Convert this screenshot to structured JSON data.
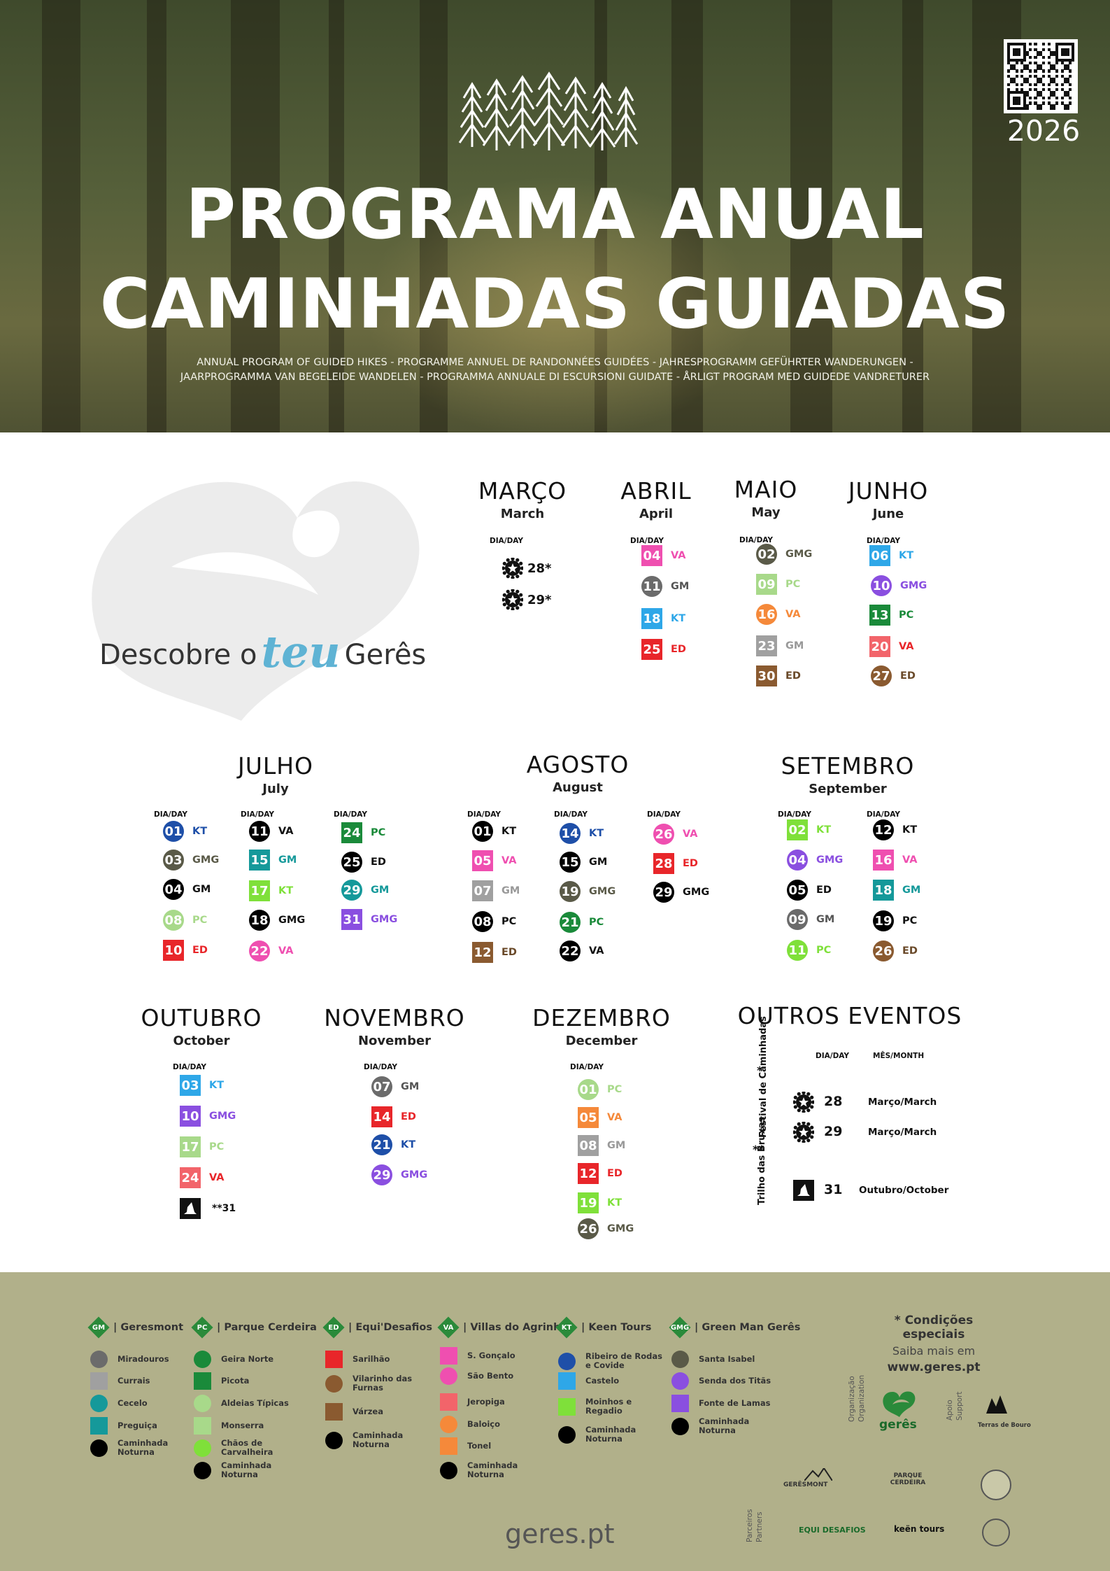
{
  "hero": {
    "year": "2026",
    "title_line1": "PROGRAMA ANUAL",
    "title_line2": "CAMINHADAS GUIADAS",
    "subtitle_line1": "ANNUAL PROGRAM OF GUIDED HIKES - PROGRAMME ANNUEL DE RANDONNÉES GUIDÉES - JAHRESPROGRAMM GEFÜHRTER WANDERUNGEN -",
    "subtitle_line2": "JAARPROGRAMMA VAN BEGELEIDE WANDELEN - PROGRAMMA ANNUALE DI ESCURSIONI GUIDATE - ÅRLIGT PROGRAM MED GUIDEDE VANDRETURER"
  },
  "slogan": {
    "pre": "Descobre o",
    "teu": "teu",
    "post": "Gerês"
  },
  "dia_label": "DIA/DAY",
  "colors": {
    "KT": "#2ea7e8",
    "VA": "#ef4fb0",
    "GM": "#666666",
    "ED": "#e8262a",
    "GMG": "#8a4fe0",
    "PC": "#1a8a3a",
    "pc_light": "#a8d98a",
    "gm_teal": "#15999a",
    "kt_navy": "#1e4fa8",
    "kt_lime": "#7fe03a",
    "gmg_olive": "#5a5a48",
    "ed_brown": "#8a5a30",
    "va_orange": "#f5893a",
    "va_salmon": "#f2646a",
    "gm_silver": "#a0a0a0",
    "footer_bg": "#b1b08a"
  },
  "months": {
    "marco": {
      "name": "MARÇO",
      "eng": "March",
      "events": [
        {
          "day": "28*",
          "icon": "star-badge-icon"
        },
        {
          "day": "29*",
          "icon": "star-badge-icon"
        }
      ]
    },
    "abril": {
      "name": "ABRIL",
      "eng": "April",
      "events": [
        {
          "day": "04",
          "code": "VA"
        },
        {
          "day": "11",
          "code": "GM"
        },
        {
          "day": "18",
          "code": "KT"
        },
        {
          "day": "25",
          "code": "ED"
        }
      ]
    },
    "maio": {
      "name": "MAIO",
      "eng": "May",
      "events": [
        {
          "day": "02",
          "code": "GMG"
        },
        {
          "day": "09",
          "code": "PC"
        },
        {
          "day": "16",
          "code": "VA"
        },
        {
          "day": "23",
          "code": "GM"
        },
        {
          "day": "30",
          "code": "ED"
        }
      ]
    },
    "junho": {
      "name": "JUNHO",
      "eng": "June",
      "events": [
        {
          "day": "06",
          "code": "KT"
        },
        {
          "day": "10",
          "code": "GMG"
        },
        {
          "day": "13",
          "code": "PC"
        },
        {
          "day": "20",
          "code": "VA"
        },
        {
          "day": "27",
          "code": "ED"
        }
      ]
    },
    "julho": {
      "name": "JULHO",
      "eng": "July",
      "events": [
        {
          "day": "01",
          "code": "KT"
        },
        {
          "day": "03",
          "code": "GMG"
        },
        {
          "day": "04",
          "code": "GM"
        },
        {
          "day": "08",
          "code": "PC"
        },
        {
          "day": "10",
          "code": "ED"
        },
        {
          "day": "11",
          "code": "VA"
        },
        {
          "day": "15",
          "code": "GM"
        },
        {
          "day": "17",
          "code": "KT"
        },
        {
          "day": "18",
          "code": "GMG"
        },
        {
          "day": "22",
          "code": "VA"
        },
        {
          "day": "24",
          "code": "PC"
        },
        {
          "day": "25",
          "code": "ED"
        },
        {
          "day": "29",
          "code": "GM"
        },
        {
          "day": "31",
          "code": "GMG"
        }
      ]
    },
    "agosto": {
      "name": "AGOSTO",
      "eng": "August",
      "events": [
        {
          "day": "01",
          "code": "KT"
        },
        {
          "day": "05",
          "code": "VA"
        },
        {
          "day": "07",
          "code": "GM"
        },
        {
          "day": "08",
          "code": "PC"
        },
        {
          "day": "12",
          "code": "ED"
        },
        {
          "day": "14",
          "code": "KT"
        },
        {
          "day": "15",
          "code": "GM"
        },
        {
          "day": "19",
          "code": "GMG"
        },
        {
          "day": "21",
          "code": "PC"
        },
        {
          "day": "22",
          "code": "VA"
        },
        {
          "day": "26",
          "code": "VA"
        },
        {
          "day": "28",
          "code": "ED"
        },
        {
          "day": "29",
          "code": "GMG"
        }
      ]
    },
    "setembro": {
      "name": "SETEMBRO",
      "eng": "September",
      "events": [
        {
          "day": "02",
          "code": "KT"
        },
        {
          "day": "04",
          "code": "GMG"
        },
        {
          "day": "05",
          "code": "ED"
        },
        {
          "day": "09",
          "code": "GM"
        },
        {
          "day": "11",
          "code": "PC"
        },
        {
          "day": "12",
          "code": "KT"
        },
        {
          "day": "16",
          "code": "VA"
        },
        {
          "day": "18",
          "code": "GM"
        },
        {
          "day": "19",
          "code": "PC"
        },
        {
          "day": "26",
          "code": "ED"
        }
      ]
    },
    "outubro": {
      "name": "OUTUBRO",
      "eng": "October",
      "events": [
        {
          "day": "03",
          "code": "KT"
        },
        {
          "day": "10",
          "code": "GMG"
        },
        {
          "day": "17",
          "code": "PC"
        },
        {
          "day": "24",
          "code": "VA"
        },
        {
          "day": "**31",
          "icon": "witch-hat-icon"
        }
      ]
    },
    "novembro": {
      "name": "NOVEMBRO",
      "eng": "November",
      "events": [
        {
          "day": "07",
          "code": "GM"
        },
        {
          "day": "14",
          "code": "ED"
        },
        {
          "day": "21",
          "code": "KT"
        },
        {
          "day": "29",
          "code": "GMG"
        }
      ]
    },
    "dezembro": {
      "name": "DEZEMBRO",
      "eng": "December",
      "events": [
        {
          "day": "01",
          "code": "PC"
        },
        {
          "day": "05",
          "code": "VA"
        },
        {
          "day": "08",
          "code": "GM"
        },
        {
          "day": "12",
          "code": "ED"
        },
        {
          "day": "19",
          "code": "KT"
        },
        {
          "day": "26",
          "code": "GMG"
        }
      ]
    }
  },
  "outros": {
    "title": "OUTROS EVENTOS",
    "dia_head": "DIA/DAY",
    "mes_head": "MÊS/MONTH",
    "festival_label": "Festival de Caminhadas",
    "festival_mark": "*",
    "bruxas_label": "Trilho das Bruxas",
    "bruxas_mark": "**",
    "events": [
      {
        "day": "28",
        "month": "Março/March"
      },
      {
        "day": "29",
        "month": "Março/March"
      },
      {
        "day": "31",
        "month": "Outubro/October"
      }
    ]
  },
  "legend": [
    {
      "code": "GM",
      "name": "| Geresmont",
      "items": [
        "Miradouros",
        "Currais",
        "Cecelo",
        "Preguiça",
        "Caminhada Noturna"
      ]
    },
    {
      "code": "PC",
      "name": "| Parque Cerdeira",
      "items": [
        "Geira Norte",
        "Picota",
        "Aldeias Típicas",
        "Monserra",
        "Chãos de Carvalheira",
        "Caminhada Noturna"
      ]
    },
    {
      "code": "ED",
      "name": "| Equi'Desafios",
      "items": [
        "Sarilhão",
        "Vilarinho das Furnas",
        "Várzea",
        "Caminhada Noturna"
      ]
    },
    {
      "code": "VA",
      "name": "| Villas do Agrinho",
      "items": [
        "S. Gonçalo",
        "São Bento",
        "Jeropiga",
        "Baloiço",
        "Tonel",
        "Caminhada Noturna"
      ]
    },
    {
      "code": "KT",
      "name": "| Keen Tours",
      "items": [
        "Ribeiro de Rodas e Covide",
        "Castelo",
        "Moinhos e Regadio",
        "Caminhada Noturna"
      ]
    },
    {
      "code": "GMG",
      "name": "| Green Man Gerês",
      "items": [
        "Santa Isabel",
        "Senda dos Titãs",
        "Fonte de Lamas",
        "Caminhada Noturna"
      ]
    }
  ],
  "conditions": {
    "line1": "* Condições especiais",
    "line2": "Saiba mais em",
    "line3": "www.geres.pt"
  },
  "footer": {
    "site": "geres.pt",
    "org_label": "Organização",
    "org_label_en": "Organization",
    "org_logo": "gerês",
    "support_label": "Apoio",
    "support_label_en": "Support",
    "support_logo": "Terras de Bouro",
    "partners_label": "Parceiros",
    "partners_label_en": "Partners",
    "partners": [
      "GERÊSMONT",
      "PARQUE CERDEIRA",
      "EQUI DESAFIOS",
      "keën tours"
    ]
  }
}
